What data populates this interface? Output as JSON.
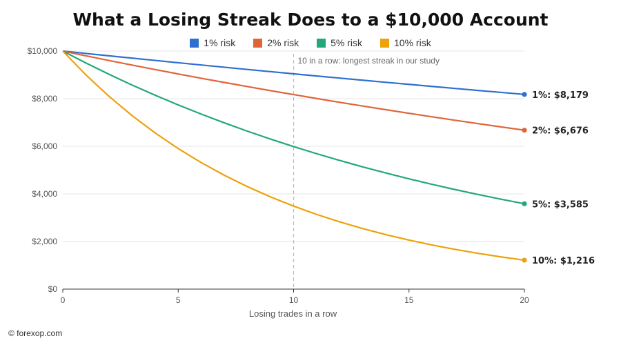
{
  "chart_data": {
    "type": "line",
    "title": "What a Losing Streak Does to a $10,000 Account",
    "xlabel": "Losing trades in a row",
    "ylabel": "",
    "xlim": [
      0,
      20
    ],
    "ylim": [
      0,
      10000
    ],
    "x_ticks": [
      "0",
      "5",
      "10",
      "15",
      "20"
    ],
    "y_ticks": [
      "$0",
      "$2,000",
      "$4,000",
      "$6,000",
      "$8,000",
      "$10,000"
    ],
    "grid": "horizontal",
    "legend_position": "top-center",
    "x": [
      0,
      1,
      2,
      3,
      4,
      5,
      6,
      7,
      8,
      9,
      10,
      11,
      12,
      13,
      14,
      15,
      16,
      17,
      18,
      19,
      20
    ],
    "series": [
      {
        "name": "1% risk",
        "color": "#2f6fd0",
        "values": [
          10000,
          9900,
          9801,
          9703,
          9606,
          9510,
          9415,
          9321,
          9227,
          9135,
          9044,
          8953,
          8864,
          8775,
          8687,
          8601,
          8515,
          8429,
          8345,
          8262,
          8179
        ],
        "end_label": "1%: $8,179"
      },
      {
        "name": "2% risk",
        "color": "#e0643a",
        "values": [
          10000,
          9800,
          9604,
          9412,
          9224,
          9039,
          8858,
          8681,
          8508,
          8337,
          8171,
          8007,
          7847,
          7690,
          7536,
          7386,
          7238,
          7093,
          6951,
          6812,
          6676
        ],
        "end_label": "2%: $6,676"
      },
      {
        "name": "5% risk",
        "color": "#22a87a",
        "values": [
          10000,
          9500,
          9025,
          8574,
          8145,
          7738,
          7351,
          6983,
          6634,
          6302,
          5987,
          5688,
          5404,
          5133,
          4877,
          4633,
          4401,
          4181,
          3972,
          3774,
          3585
        ],
        "end_label": "5%: $3,585"
      },
      {
        "name": "10% risk",
        "color": "#eda10a",
        "values": [
          10000,
          9000,
          8100,
          7290,
          6561,
          5905,
          5314,
          4783,
          4305,
          3874,
          3487,
          3138,
          2824,
          2542,
          2288,
          2059,
          1853,
          1668,
          1501,
          1351,
          1216
        ],
        "end_label": "10%: $1,216"
      }
    ],
    "annotation": {
      "x": 10,
      "text": "10 in a row: longest streak in our study"
    }
  },
  "copyright": "© forexop.com"
}
